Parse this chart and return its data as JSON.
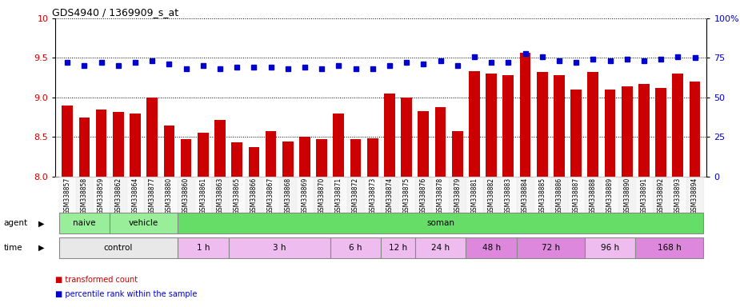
{
  "title": "GDS4940 / 1369909_s_at",
  "samples": [
    "GSM338857",
    "GSM338858",
    "GSM338859",
    "GSM338862",
    "GSM338864",
    "GSM338877",
    "GSM338880",
    "GSM338860",
    "GSM338861",
    "GSM338863",
    "GSM338865",
    "GSM338866",
    "GSM338867",
    "GSM338868",
    "GSM338869",
    "GSM338870",
    "GSM338871",
    "GSM338872",
    "GSM338873",
    "GSM338874",
    "GSM338875",
    "GSM338876",
    "GSM338878",
    "GSM338879",
    "GSM338881",
    "GSM338882",
    "GSM338883",
    "GSM338884",
    "GSM338885",
    "GSM338886",
    "GSM338887",
    "GSM338888",
    "GSM338889",
    "GSM338890",
    "GSM338891",
    "GSM338892",
    "GSM338893",
    "GSM338894"
  ],
  "bar_values": [
    8.9,
    8.75,
    8.85,
    8.82,
    8.8,
    9.0,
    8.65,
    8.47,
    8.55,
    8.72,
    8.43,
    8.37,
    8.57,
    8.44,
    8.5,
    8.47,
    8.8,
    8.47,
    8.48,
    9.05,
    9.0,
    8.83,
    8.88,
    8.57,
    9.33,
    9.3,
    9.28,
    9.57,
    9.32,
    9.28,
    9.1,
    9.32,
    9.1,
    9.14,
    9.17,
    9.12,
    9.3,
    9.2
  ],
  "percentile_values": [
    72,
    70,
    72,
    70,
    72,
    73,
    71,
    68,
    70,
    68,
    69,
    69,
    69,
    68,
    69,
    68,
    70,
    68,
    68,
    70,
    72,
    71,
    73,
    70,
    76,
    72,
    72,
    78,
    76,
    73,
    72,
    74,
    73,
    74,
    73,
    74,
    76,
    75
  ],
  "ylim_left": [
    8.0,
    10.0
  ],
  "ylim_right": [
    0,
    100
  ],
  "yticks_left": [
    8.0,
    8.5,
    9.0,
    9.5,
    10.0
  ],
  "yticks_right": [
    0,
    25,
    50,
    75,
    100
  ],
  "ytick_labels_right": [
    "0",
    "25",
    "50",
    "75",
    "100%"
  ],
  "bar_color": "#cc0000",
  "dot_color": "#0000cc",
  "naive_count": 3,
  "vehicle_count": 4,
  "agent_groups": [
    {
      "label": "naive",
      "start": 0,
      "end": 3,
      "color": "#99ee99"
    },
    {
      "label": "vehicle",
      "start": 3,
      "end": 7,
      "color": "#99ee99"
    },
    {
      "label": "soman",
      "start": 7,
      "end": 38,
      "color": "#66dd66"
    }
  ],
  "time_groups": [
    {
      "label": "control",
      "start": 0,
      "end": 7,
      "color": "#e8e8e8"
    },
    {
      "label": "1 h",
      "start": 7,
      "end": 10,
      "color": "#eebcee"
    },
    {
      "label": "3 h",
      "start": 10,
      "end": 16,
      "color": "#eebcee"
    },
    {
      "label": "6 h",
      "start": 16,
      "end": 19,
      "color": "#eebcee"
    },
    {
      "label": "12 h",
      "start": 19,
      "end": 21,
      "color": "#eebcee"
    },
    {
      "label": "24 h",
      "start": 21,
      "end": 24,
      "color": "#eebcee"
    },
    {
      "label": "48 h",
      "start": 24,
      "end": 27,
      "color": "#dd88dd"
    },
    {
      "label": "72 h",
      "start": 27,
      "end": 31,
      "color": "#dd88dd"
    },
    {
      "label": "96 h",
      "start": 31,
      "end": 34,
      "color": "#eebcee"
    },
    {
      "label": "168 h",
      "start": 34,
      "end": 38,
      "color": "#dd88dd"
    }
  ],
  "bg_color": "#ffffff"
}
